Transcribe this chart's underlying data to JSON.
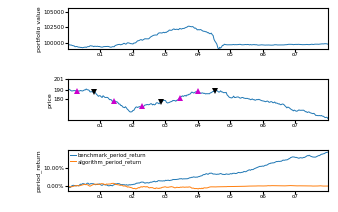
{
  "portfolio_color": "#1f77b4",
  "price_color": "#1f77b4",
  "benchmark_color": "#1f77b4",
  "algorithm_color": "#ff7f0e",
  "buy_color": "#cc00cc",
  "sell_color": "#000000",
  "xlabel_ticks": [
    "o1",
    "o2",
    "o3",
    "o4",
    "o5",
    "o6",
    "o7"
  ],
  "portfolio_ylabel": "portfolio value",
  "price_ylabel": "price",
  "return_ylabel": "period_return",
  "legend_labels": [
    "benchmark_period_return",
    "algorithm_period_return"
  ],
  "portfolio_yticks": [
    100000,
    102500,
    105000
  ],
  "price_yticks": [
    180,
    190,
    201
  ],
  "return_yticks": [
    0.0,
    0.1
  ],
  "return_ytick_labels": [
    "0.00%",
    "10.00%"
  ]
}
